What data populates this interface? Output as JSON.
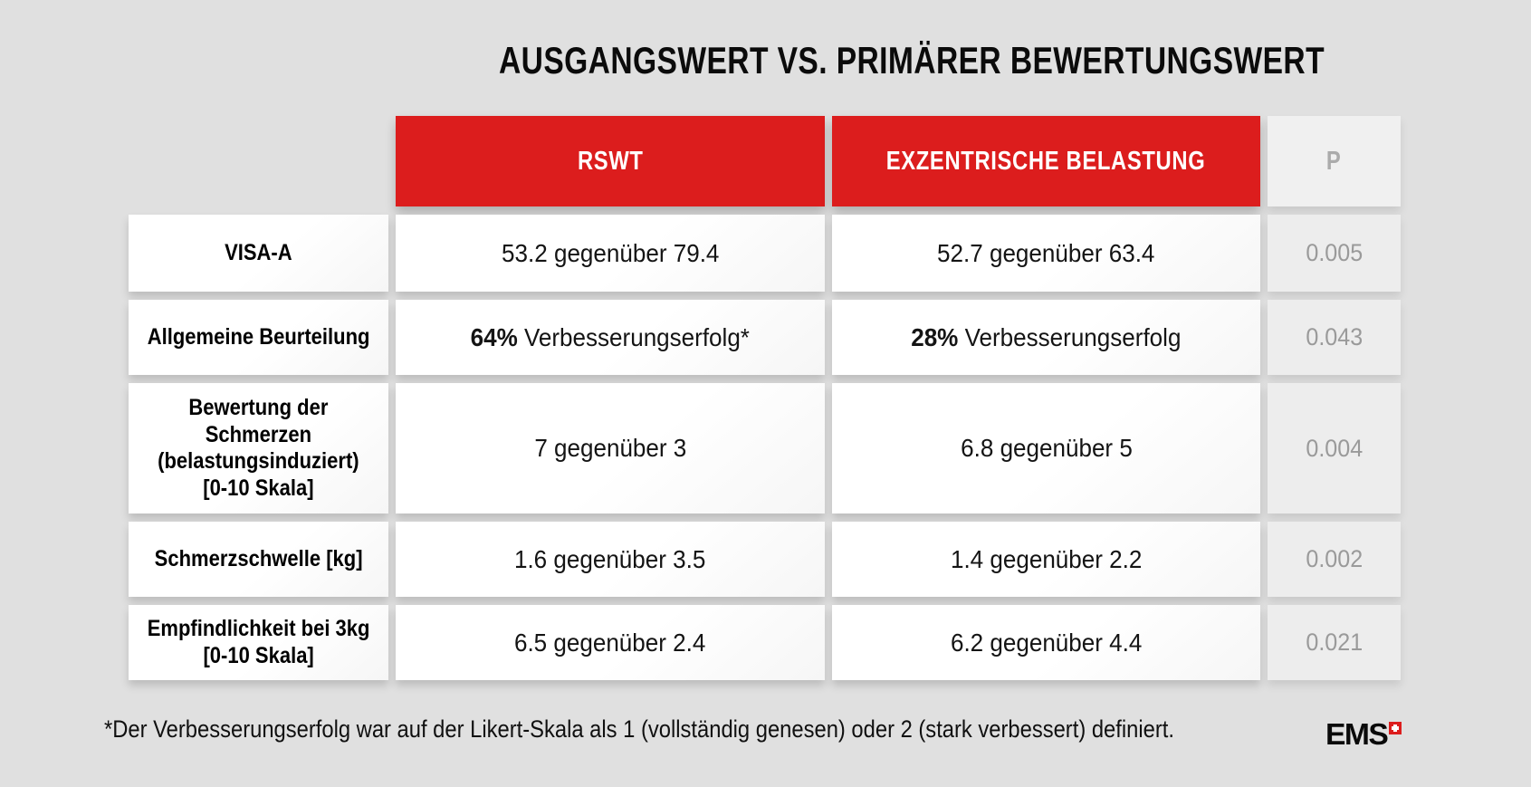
{
  "title": "AUSGANGSWERT VS. PRIMÄRER BEWERTUNGSWERT",
  "colors": {
    "accent_red": "#DC1D1D",
    "page_background": "#E0E0E0",
    "p_column_text": "#9A9A9A"
  },
  "table": {
    "columns": [
      {
        "label": "RSWT"
      },
      {
        "label": "EXZENTRISCHE BELASTUNG"
      },
      {
        "label": "P"
      }
    ],
    "rows": [
      {
        "label": "VISA-A",
        "rswt": {
          "bold": "",
          "text": "53.2 gegenüber 79.4"
        },
        "exzentrische_belastung": {
          "bold": "",
          "text": "52.7 gegenüber 63.4"
        },
        "p": "0.005"
      },
      {
        "label": "Allgemeine Beurteilung",
        "rswt": {
          "bold": "64%",
          "text": " Verbesserungserfolg*"
        },
        "exzentrische_belastung": {
          "bold": "28%",
          "text": " Verbesserungserfolg"
        },
        "p": "0.043"
      },
      {
        "label": "Bewertung der\nSchmerzen\n(belastungsinduziert)\n[0-10 Skala]",
        "rswt": {
          "bold": "",
          "text": "7 gegenüber 3"
        },
        "exzentrische_belastung": {
          "bold": "",
          "text": "6.8 gegenüber 5"
        },
        "p": "0.004"
      },
      {
        "label": "Schmerzschwelle [kg]",
        "rswt": {
          "bold": "",
          "text": "1.6 gegenüber 3.5"
        },
        "exzentrische_belastung": {
          "bold": "",
          "text": "1.4 gegenüber 2.2"
        },
        "p": "0.002"
      },
      {
        "label": "Empfindlichkeit bei 3kg\n[0-10 Skala]",
        "rswt": {
          "bold": "",
          "text": "6.5 gegenüber 2.4"
        },
        "exzentrische_belastung": {
          "bold": "",
          "text": "6.2 gegenüber 4.4"
        },
        "p": "0.021"
      }
    ]
  },
  "footnote": "*Der Verbesserungserfolg war auf der Likert-Skala als 1 (vollständig genesen) oder 2 (stark verbessert) definiert.",
  "logo": {
    "text": "EMS"
  },
  "chart_data": {
    "type": "table",
    "title": "AUSGANGSWERT VS. PRIMÄRER BEWERTUNGSWERT",
    "columns": [
      "",
      "RSWT",
      "EXZENTRISCHE BELASTUNG",
      "P"
    ],
    "rows": [
      [
        "VISA-A",
        "53.2 gegenüber 79.4",
        "52.7 gegenüber 63.4",
        "0.005"
      ],
      [
        "Allgemeine Beurteilung",
        "64% Verbesserungserfolg*",
        "28% Verbesserungserfolg",
        "0.043"
      ],
      [
        "Bewertung der Schmerzen (belastungsinduziert) [0-10 Skala]",
        "7 gegenüber 3",
        "6.8 gegenüber 5",
        "0.004"
      ],
      [
        "Schmerzschwelle [kg]",
        "1.6 gegenüber 3.5",
        "1.4 gegenüber 2.2",
        "0.002"
      ],
      [
        "Empfindlichkeit bei 3kg [0-10 Skala]",
        "6.5 gegenüber 2.4",
        "6.2 gegenüber 4.4",
        "0.021"
      ]
    ],
    "footnote": "*Der Verbesserungserfolg war auf der Likert-Skala als 1 (vollständig genesen) oder 2 (stark verbessert) definiert."
  }
}
